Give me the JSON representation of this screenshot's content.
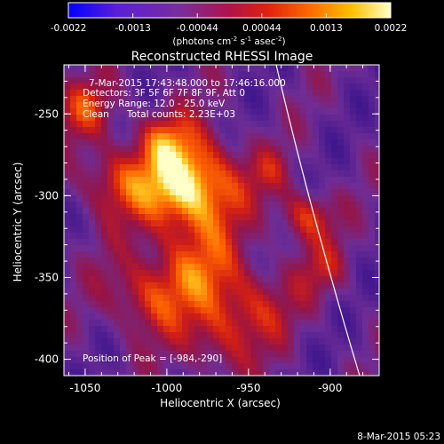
{
  "colorbar": {
    "tick_labels": [
      "-0.0022",
      "-0.0013",
      "-0.00044",
      "0.00044",
      "0.0013",
      "0.0022"
    ],
    "units": "(photons cm",
    "units_exp1": "-2",
    "units_mid": " s",
    "units_exp2": "-1",
    "units_tail": " asec",
    "units_exp3": "-2",
    "units_close": ")"
  },
  "plot": {
    "title": "Reconstructed RHESSI Image",
    "xlabel": "Heliocentric X (arcsec)",
    "ylabel": "Heliocentric Y (arcsec)",
    "x_ticks": [
      "-1050",
      "-1000",
      "-950",
      "-900"
    ],
    "y_ticks": [
      "-250",
      "-300",
      "-350",
      "-400"
    ],
    "x_range": [
      -1063,
      -870
    ],
    "y_range": [
      -410,
      -220
    ]
  },
  "annotation": {
    "time_range": "7-Mar-2015 17:43:48.000 to 17:46:16.000",
    "detectors": "Detectors: 3F 5F 6F 7F 8F 9F, Att 0",
    "energy": "Energy Range: 12.0 - 25.0 keV",
    "clean": "Clean",
    "total_counts": "Total counts: 2.23E+03",
    "peak": "Position of Peak = [-984,-290]"
  },
  "timestamp": "8-Mar-2015 05:23",
  "colors": {
    "background": "#000000",
    "text": "#ffffff",
    "limb": "#ffffff"
  }
}
